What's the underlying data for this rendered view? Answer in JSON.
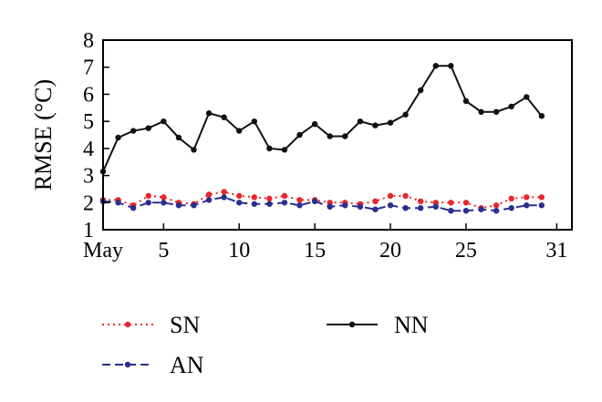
{
  "chart_data": {
    "type": "line",
    "ylabel": "RMSE (°C)",
    "xlabel": "",
    "xlim": [
      1,
      32
    ],
    "ylim": [
      1,
      8
    ],
    "yticks": [
      1,
      2,
      3,
      4,
      5,
      6,
      7,
      8
    ],
    "xticks": [
      {
        "value": 1,
        "label": "May"
      },
      {
        "value": 5,
        "label": "5"
      },
      {
        "value": 10,
        "label": "10"
      },
      {
        "value": 15,
        "label": "15"
      },
      {
        "value": 20,
        "label": "20"
      },
      {
        "value": 25,
        "label": "25"
      },
      {
        "value": 31,
        "label": "31"
      }
    ],
    "x": [
      1,
      2,
      3,
      4,
      5,
      6,
      7,
      8,
      9,
      10,
      11,
      12,
      13,
      14,
      15,
      16,
      17,
      18,
      19,
      20,
      21,
      22,
      23,
      24,
      25,
      26,
      27,
      28,
      29,
      30
    ],
    "series": [
      {
        "name": "SN",
        "color": "#e8262b",
        "style": "dotted",
        "values": [
          2.1,
          2.1,
          1.9,
          2.25,
          2.2,
          2.0,
          1.95,
          2.3,
          2.4,
          2.25,
          2.2,
          2.15,
          2.25,
          2.1,
          2.1,
          2.0,
          2.0,
          1.95,
          2.05,
          2.25,
          2.25,
          2.05,
          2.0,
          2.0,
          2.0,
          1.8,
          1.9,
          2.15,
          2.2,
          2.2
        ]
      },
      {
        "name": "AN",
        "color": "#2a2f8f",
        "style": "dashed",
        "values": [
          2.05,
          2.0,
          1.8,
          2.0,
          2.0,
          1.9,
          1.9,
          2.1,
          2.2,
          2.0,
          1.95,
          1.95,
          2.0,
          1.9,
          2.05,
          1.85,
          1.9,
          1.85,
          1.75,
          1.9,
          1.8,
          1.8,
          1.85,
          1.7,
          1.7,
          1.75,
          1.7,
          1.8,
          1.9,
          1.9
        ]
      },
      {
        "name": "NN",
        "color": "#111111",
        "style": "solid",
        "values": [
          3.15,
          4.4,
          4.65,
          4.75,
          5.0,
          4.4,
          3.95,
          5.3,
          5.15,
          4.65,
          5.0,
          4.0,
          3.95,
          4.5,
          4.9,
          4.45,
          4.45,
          5.0,
          4.85,
          4.95,
          5.25,
          6.15,
          7.05,
          7.05,
          5.75,
          5.35,
          5.35,
          5.55,
          5.9,
          5.2
        ]
      }
    ],
    "legend": {
      "placement": "bottom",
      "order": [
        "SN",
        "NN",
        "AN"
      ]
    }
  }
}
